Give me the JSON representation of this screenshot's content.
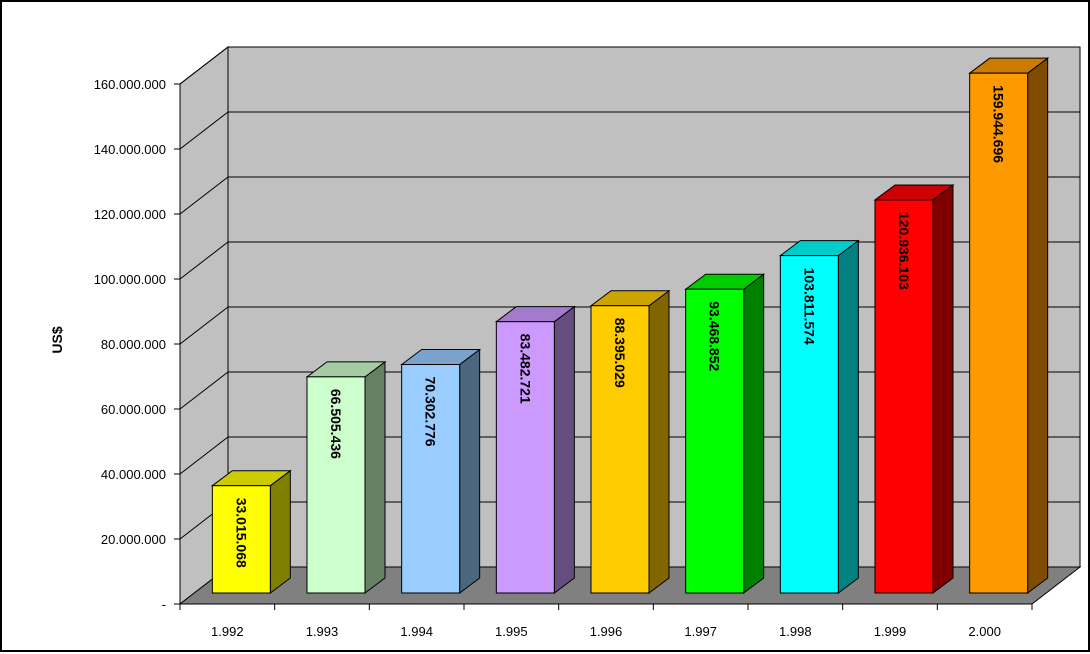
{
  "chart_data": {
    "type": "bar",
    "categories": [
      "1.992",
      "1.993",
      "1.994",
      "1.995",
      "1.996",
      "1.997",
      "1.998",
      "1.999",
      "2.000"
    ],
    "values": [
      33015068,
      66505436,
      70302776,
      83482721,
      88395029,
      93468852,
      103811574,
      120936103,
      159944696
    ],
    "value_labels": [
      "33.015.068",
      "66.505.436",
      "70.302.776",
      "83.482.721",
      "88.395.029",
      "93.468.852",
      "103.811.574",
      "120.936.103",
      "159.944.696"
    ],
    "ylabel": "US$",
    "xlabel": "",
    "title": "",
    "ylim": [
      0,
      160000000
    ],
    "yticks": [
      0,
      20000000,
      40000000,
      60000000,
      80000000,
      100000000,
      120000000,
      140000000,
      160000000
    ],
    "ytick_labels": [
      "-",
      "20.000.000",
      "40.000.000",
      "60.000.000",
      "80.000.000",
      "100.000.000",
      "120.000.000",
      "140.000.000",
      "160.000.000"
    ],
    "grid": true,
    "legend": "none",
    "style": "3d-column",
    "colors": {
      "front": [
        "#FFFF00",
        "#CCFFCC",
        "#99CCFF",
        "#CC99FF",
        "#FFCC00",
        "#00FF00",
        "#00FFFF",
        "#FF0000",
        "#FF9900"
      ],
      "side": [
        "#808000",
        "#668066",
        "#4D6680",
        "#664D80",
        "#806600",
        "#008000",
        "#008080",
        "#800000",
        "#804D00"
      ],
      "top": [
        "#CCCC00",
        "#A3CCA3",
        "#7AA3CC",
        "#A37ACC",
        "#CCA300",
        "#00CC00",
        "#00CCCC",
        "#CC0000",
        "#CC7A00"
      ],
      "wall": "#C0C0C0",
      "floor": "#808080"
    }
  }
}
